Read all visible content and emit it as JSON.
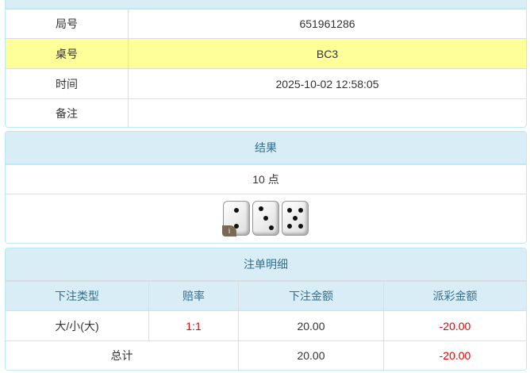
{
  "info": {
    "rows": [
      {
        "label": "局号",
        "value": "651961286"
      },
      {
        "label": "桌号",
        "value": "BC3"
      },
      {
        "label": "时间",
        "value": "2025-10-02 12:58:05"
      },
      {
        "label": "备注",
        "value": ""
      }
    ]
  },
  "result": {
    "title": "结果",
    "points": "10 点",
    "dice": [
      2,
      3,
      5
    ],
    "info_badge": "i"
  },
  "bets": {
    "title": "注单明细",
    "headers": [
      "下注类型",
      "赔率",
      "下注金额",
      "派彩金额"
    ],
    "rows": [
      {
        "type": "大/小(大)",
        "odds": "1:1",
        "amount": "20.00",
        "payout": "-20.00"
      }
    ],
    "total": {
      "label": "总计",
      "amount": "20.00",
      "payout": "-20.00"
    }
  },
  "colors": {
    "header_bg": "#d9edf7",
    "header_text": "#31708f",
    "highlight": "#ffff99",
    "negative": "#ee0000"
  }
}
